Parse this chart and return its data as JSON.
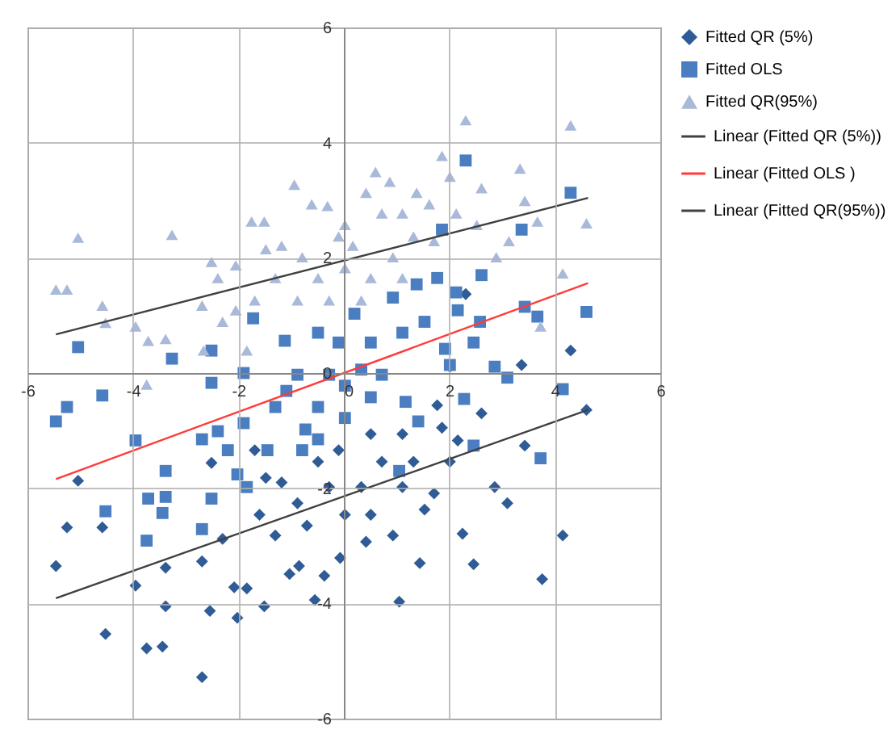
{
  "chart_data": {
    "type": "scatter",
    "xlim": [
      -6,
      6
    ],
    "ylim": [
      -6,
      6
    ],
    "xticks": [
      -6,
      -4,
      -2,
      0,
      2,
      4,
      6
    ],
    "yticks": [
      -6,
      -4,
      -2,
      0,
      2,
      4,
      6
    ],
    "grid": true,
    "legend": "right",
    "series": [
      {
        "name": "Fitted QR (5%)",
        "type": "scatter",
        "marker": "diamond",
        "color": "#2f5b96",
        "x": [
          4.3,
          3.37,
          2.01,
          2.31,
          4.6,
          -5.04,
          -5.25,
          -4.58,
          -5.46,
          -4.52,
          -3.95,
          -3.74,
          -3.44,
          -3.38,
          -3.38,
          -2.69,
          -2.69,
          -2.54,
          -2.51,
          -2.3,
          -2.02,
          -2.08,
          -1.84,
          -1.51,
          -1.69,
          -1.6,
          -1.03,
          -0.85,
          -0.55,
          -0.37,
          -0.07,
          1.05,
          1.44,
          2.46,
          3.76,
          4.15,
          2.25,
          3.1,
          2.86,
          3.43,
          2.61,
          1.77,
          1.86,
          2.16,
          2.01,
          1.53,
          0.93,
          0.51,
          0.33,
          0.02,
          -0.28,
          -0.49,
          -0.7,
          -0.88,
          -1.18,
          -1.3,
          -1.48,
          1.11,
          0.72,
          0.51,
          -0.1,
          1.32,
          1.71,
          1.11,
          0.42
        ],
        "values": [
          0.39,
          0.14,
          0.11,
          1.37,
          -0.64,
          -1.87,
          -2.68,
          -2.68,
          -3.35,
          -4.53,
          -3.69,
          -4.78,
          -4.75,
          -3.38,
          -4.05,
          -5.28,
          -3.27,
          -4.13,
          -1.56,
          -2.88,
          -4.25,
          -3.72,
          -3.74,
          -4.05,
          -1.34,
          -2.46,
          -3.49,
          -3.35,
          -3.94,
          -3.52,
          -3.21,
          -3.97,
          -3.3,
          -3.32,
          -3.58,
          -2.82,
          -2.79,
          -2.26,
          -1.98,
          -1.26,
          -0.7,
          -0.56,
          -0.95,
          -1.17,
          -1.54,
          -2.37,
          -2.82,
          -2.46,
          -1.98,
          -2.46,
          -1.98,
          -1.54,
          -2.65,
          -2.26,
          -1.9,
          -2.82,
          -1.82,
          -1.98,
          -1.54,
          -1.06,
          -1.34,
          -1.54,
          -2.09,
          -1.06,
          -2.93
        ]
      },
      {
        "name": "Fitted OLS",
        "type": "scatter",
        "marker": "square",
        "color": "#4a7ec0",
        "x": [
          2.31,
          4.3,
          3.37,
          1.86,
          2.61,
          1.77,
          3.43,
          4.6,
          3.67,
          2.58,
          2.16,
          1.38,
          -5.04,
          -3.26,
          -2.51,
          -1.72,
          -1.12,
          0.2,
          0.93,
          0.51,
          -0.1,
          -0.49,
          1.11,
          1.53,
          1.92,
          2.46,
          2.13,
          -5.46,
          -5.25,
          -4.58,
          -3.95,
          -3.38,
          -3.38,
          -3.71,
          -4.52,
          -3.44,
          -3.74,
          -2.69,
          -2.69,
          -2.51,
          -2.39,
          -2.02,
          -1.84,
          -2.2,
          -1.9,
          -2.51,
          -1.9,
          -1.45,
          -1.3,
          -0.79,
          -0.73,
          -0.49,
          0.02,
          0.51,
          1.17,
          1.41,
          1.05,
          2.28,
          2.46,
          3.73,
          4.15,
          2.86,
          3.1,
          2.01,
          -0.28,
          -0.88,
          0.33,
          0.72,
          0.02,
          -1.09,
          -0.49
        ],
        "values": [
          3.69,
          3.13,
          2.49,
          2.49,
          1.7,
          1.65,
          1.15,
          1.06,
          0.98,
          0.89,
          1.09,
          1.54,
          0.45,
          0.25,
          0.39,
          0.95,
          0.56,
          1.03,
          1.31,
          0.53,
          0.53,
          0.7,
          0.7,
          0.89,
          0.42,
          0.53,
          1.4,
          -0.84,
          -0.59,
          -0.39,
          -1.17,
          -1.7,
          -2.15,
          -2.18,
          -2.4,
          -2.43,
          -2.91,
          -2.71,
          -1.15,
          -2.18,
          -1.01,
          -1.76,
          -1.98,
          -1.34,
          -0.87,
          -0.17,
          0.0,
          -1.34,
          -0.59,
          -1.34,
          -0.98,
          -0.59,
          -0.78,
          -0.42,
          -0.5,
          -0.84,
          -1.7,
          -0.45,
          -1.26,
          -1.48,
          -0.28,
          0.11,
          -0.08,
          0.14,
          -0.03,
          -0.03,
          0.06,
          -0.03,
          -0.22,
          -0.31,
          -1.15
        ]
      },
      {
        "name": "Fitted QR(95%)",
        "type": "scatter",
        "marker": "triangle",
        "color": "#a9b9da",
        "x": [
          -5.04,
          -5.46,
          -5.25,
          -4.58,
          -4.52,
          -3.95,
          -3.26,
          -3.71,
          -3.38,
          -2.69,
          -2.51,
          -2.39,
          -2.05,
          -1.75,
          -1.51,
          -1.48,
          -1.18,
          -0.94,
          -0.61,
          -0.31,
          -0.1,
          0.17,
          0.42,
          0.6,
          0.87,
          1.11,
          1.38,
          1.62,
          1.86,
          2.01,
          2.31,
          2.61,
          3.34,
          3.43,
          3.67,
          4.3,
          4.6,
          4.15,
          3.13,
          2.89,
          2.52,
          2.13,
          1.71,
          0.93,
          0.51,
          0.02,
          -0.49,
          -0.79,
          -1.3,
          -1.69,
          -2.05,
          -2.3,
          -0.88,
          -0.28,
          0.33,
          3.73,
          -2.66,
          -1.84,
          -3.74,
          1.32,
          0.72,
          0.02,
          1.11
        ],
        "values": [
          2.35,
          1.45,
          1.45,
          1.17,
          0.87,
          0.81,
          2.4,
          0.56,
          0.59,
          1.17,
          1.93,
          1.65,
          1.87,
          2.63,
          2.63,
          2.15,
          2.21,
          3.27,
          2.93,
          2.9,
          2.37,
          2.21,
          3.13,
          3.49,
          3.32,
          2.77,
          3.13,
          2.93,
          3.77,
          3.41,
          4.39,
          3.21,
          3.55,
          2.99,
          2.63,
          4.3,
          2.6,
          1.73,
          2.29,
          2.01,
          2.57,
          2.77,
          2.29,
          2.01,
          1.65,
          1.82,
          1.65,
          2.01,
          1.65,
          1.26,
          1.09,
          0.89,
          1.26,
          1.26,
          1.26,
          0.81,
          0.39,
          0.39,
          -0.2,
          2.37,
          2.77,
          2.57,
          1.65
        ]
      },
      {
        "name": "Linear (Fitted QR (5%))",
        "type": "line",
        "line_style": "solid",
        "color": "#404040",
        "x": [
          -5.46,
          4.63
        ],
        "values": [
          -3.91,
          -0.64
        ]
      },
      {
        "name": "Linear (Fitted OLS )",
        "type": "line",
        "line_style": "solid",
        "color": "#ff3b3b",
        "x": [
          -5.46,
          4.63
        ],
        "values": [
          -1.84,
          1.56
        ]
      },
      {
        "name": "Linear (Fitted QR(95%))",
        "type": "line",
        "line_style": "solid",
        "color": "#404040",
        "x": [
          -5.46,
          4.63
        ],
        "values": [
          0.67,
          3.04
        ]
      }
    ]
  }
}
